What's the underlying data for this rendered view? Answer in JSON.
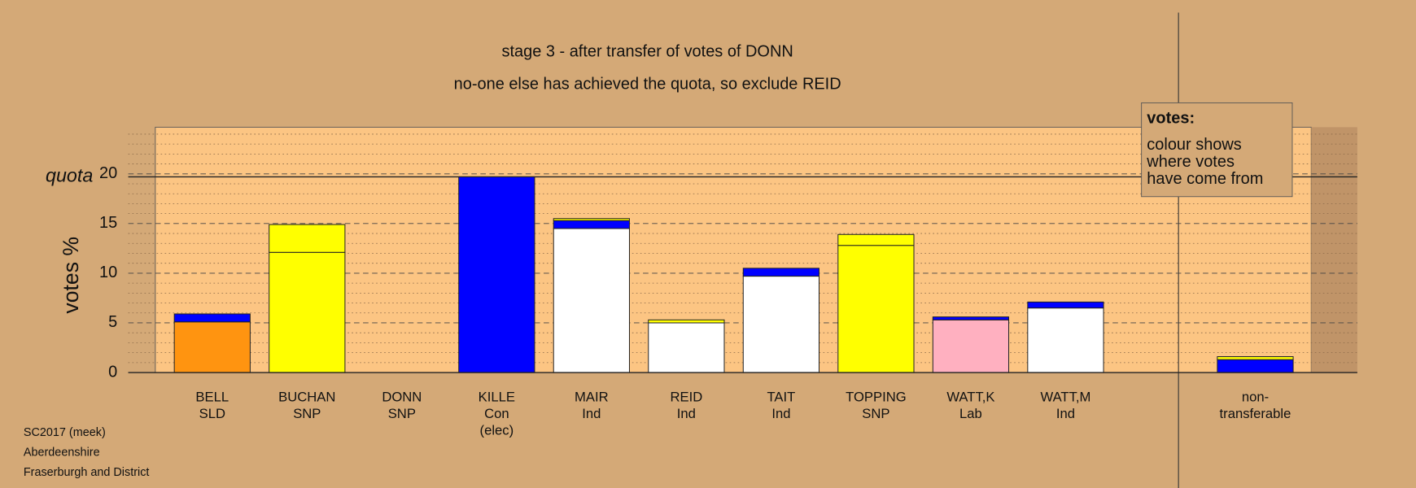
{
  "chart_data": {
    "type": "stacked-bar",
    "title": "stage 3 - after transfer of votes of DONN",
    "subtitle": "no-one else has achieved the quota, so exclude REID",
    "y_label": "votes %",
    "quota_label": "quota",
    "quota": 19.7,
    "ylim": [
      0,
      24.7
    ],
    "yticks": [
      0,
      5,
      10,
      15,
      20
    ],
    "minor_yticks": [
      1,
      2,
      3,
      4,
      6,
      7,
      8,
      9,
      11,
      12,
      13,
      14,
      16,
      17,
      18,
      19,
      21,
      22,
      23,
      24
    ],
    "grid": true,
    "legend": {
      "title": "votes:",
      "lines": [
        "colour shows",
        "where votes",
        "have come from"
      ]
    },
    "footer": [
      "SC2017 (meek)",
      "Aberdeenshire",
      "Fraserburgh and District"
    ],
    "categories": [
      [
        "BELL",
        "SLD"
      ],
      [
        "BUCHAN",
        "SNP"
      ],
      [
        "DONN",
        "SNP"
      ],
      [
        "KILLE",
        "Con",
        "(elec)"
      ],
      [
        "MAIR",
        "Ind"
      ],
      [
        "REID",
        "Ind"
      ],
      [
        "TAIT",
        "Ind"
      ],
      [
        "TOPPING",
        "SNP"
      ],
      [
        "WATT,K",
        "Lab"
      ],
      [
        "WATT,M",
        "Ind"
      ],
      [
        "non-",
        "transferable"
      ]
    ],
    "bars": [
      {
        "segments": [
          {
            "value": 5.1,
            "color": "#ff9410"
          },
          {
            "value": 0.8,
            "color": "#0000ff"
          }
        ]
      },
      {
        "segments": [
          {
            "value": 12.1,
            "color": "#ffff00"
          },
          {
            "value": 2.8,
            "color": "#ffff00"
          }
        ]
      },
      {
        "segments": []
      },
      {
        "segments": [
          {
            "value": 19.7,
            "color": "#0000ff"
          }
        ]
      },
      {
        "segments": [
          {
            "value": 14.5,
            "color": "#ffffff"
          },
          {
            "value": 0.8,
            "color": "#0000ff"
          },
          {
            "value": 0.2,
            "color": "#ffff00"
          }
        ]
      },
      {
        "segments": [
          {
            "value": 5.0,
            "color": "#ffffff"
          },
          {
            "value": 0.3,
            "color": "#ffff00"
          }
        ]
      },
      {
        "segments": [
          {
            "value": 9.7,
            "color": "#ffffff"
          },
          {
            "value": 0.8,
            "color": "#0000ff"
          }
        ]
      },
      {
        "segments": [
          {
            "value": 12.8,
            "color": "#ffff00"
          },
          {
            "value": 1.1,
            "color": "#ffff00"
          }
        ]
      },
      {
        "segments": [
          {
            "value": 5.3,
            "color": "#ffb0c0"
          },
          {
            "value": 0.3,
            "color": "#0000ff"
          }
        ]
      },
      {
        "segments": [
          {
            "value": 6.5,
            "color": "#ffffff"
          },
          {
            "value": 0.6,
            "color": "#0000ff"
          }
        ]
      },
      {
        "segments": [
          {
            "value": 1.3,
            "color": "#0000ff"
          },
          {
            "value": 0.3,
            "color": "#ffff00"
          }
        ]
      }
    ]
  }
}
